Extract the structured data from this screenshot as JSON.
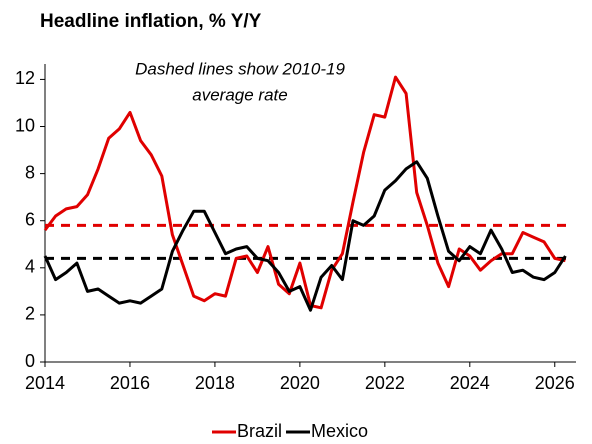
{
  "chart_data": {
    "type": "line",
    "title": "Headline inflation, % Y/Y",
    "annotation": [
      "Dashed lines show 2010-19",
      "average rate"
    ],
    "x": [
      2014,
      2014.25,
      2014.5,
      2014.75,
      2015,
      2015.25,
      2015.5,
      2015.75,
      2016,
      2016.25,
      2016.5,
      2016.75,
      2017,
      2017.25,
      2017.5,
      2017.75,
      2018,
      2018.25,
      2018.5,
      2018.75,
      2019,
      2019.25,
      2019.5,
      2019.75,
      2020,
      2020.25,
      2020.5,
      2020.75,
      2021,
      2021.25,
      2021.5,
      2021.75,
      2022,
      2022.25,
      2022.5,
      2022.75,
      2023,
      2023.25,
      2023.5,
      2023.75,
      2024,
      2024.25,
      2024.5,
      2024.75,
      2025,
      2025.25,
      2025.5,
      2025.75,
      2026,
      2026.25
    ],
    "series": [
      {
        "name": "Brazil",
        "color": "#e00000",
        "average": 5.8,
        "values": [
          5.6,
          6.2,
          6.5,
          6.6,
          7.1,
          8.2,
          9.5,
          9.9,
          10.6,
          9.4,
          8.8,
          7.9,
          5.4,
          4.1,
          2.8,
          2.6,
          2.9,
          2.8,
          4.4,
          4.5,
          3.8,
          4.9,
          3.3,
          2.9,
          4.2,
          2.4,
          2.3,
          3.9,
          4.6,
          6.8,
          8.9,
          10.5,
          10.4,
          12.1,
          11.4,
          7.2,
          5.8,
          4.2,
          3.2,
          4.8,
          4.5,
          3.9,
          4.3,
          4.6,
          4.6,
          5.5,
          5.3,
          5.1,
          4.4,
          4.3
        ]
      },
      {
        "name": "Mexico",
        "color": "#000000",
        "average": 4.4,
        "values": [
          4.5,
          3.5,
          3.8,
          4.2,
          3.0,
          3.1,
          2.8,
          2.5,
          2.6,
          2.5,
          2.8,
          3.1,
          4.7,
          5.6,
          6.4,
          6.4,
          5.5,
          4.6,
          4.8,
          4.9,
          4.4,
          4.3,
          3.8,
          3.0,
          3.2,
          2.2,
          3.6,
          4.1,
          3.5,
          6.0,
          5.8,
          6.2,
          7.3,
          7.7,
          8.2,
          8.5,
          7.8,
          6.2,
          4.7,
          4.3,
          4.9,
          4.6,
          5.6,
          4.8,
          3.8,
          3.9,
          3.6,
          3.5,
          3.8,
          4.5
        ]
      }
    ],
    "xlim": [
      2014,
      2026.5
    ],
    "xticks": [
      2014,
      2016,
      2018,
      2020,
      2022,
      2024,
      2026
    ],
    "ylim": [
      0,
      12.4
    ],
    "yticks": [
      0,
      2,
      4,
      6,
      8,
      10,
      12
    ],
    "grid": false,
    "legend": "bottom"
  }
}
